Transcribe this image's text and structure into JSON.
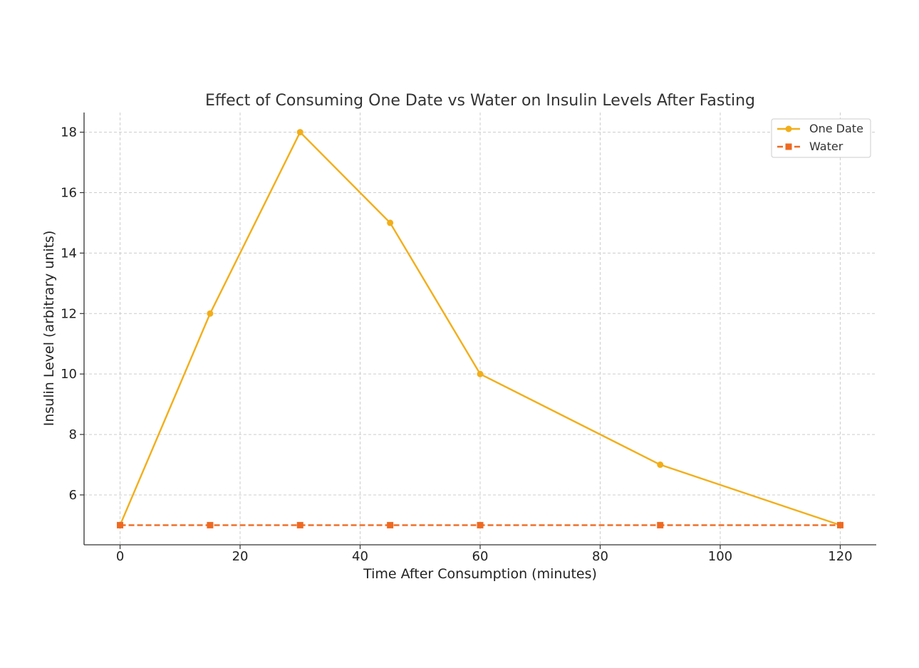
{
  "chart_data": {
    "type": "line",
    "title": "Effect of Consuming One Date vs Water on Insulin Levels After Fasting",
    "xlabel": "Time After Consumption (minutes)",
    "ylabel": "Insulin Level (arbitrary units)",
    "x": [
      0,
      15,
      30,
      45,
      60,
      90,
      120
    ],
    "xlim": [
      -6,
      126
    ],
    "ylim": [
      4.35,
      18.65
    ],
    "xticks": [
      0,
      20,
      40,
      60,
      80,
      100,
      120
    ],
    "yticks": [
      6,
      8,
      10,
      12,
      14,
      16,
      18
    ],
    "grid": true,
    "legend_position": "top-right",
    "series": [
      {
        "name": "One Date",
        "values": [
          5,
          12,
          18,
          15,
          10,
          7,
          5
        ],
        "color": "#F2AE1A",
        "marker": "circle",
        "line_style": "solid"
      },
      {
        "name": "Water",
        "values": [
          5,
          5,
          5,
          5,
          5,
          5,
          5
        ],
        "color": "#EE6A22",
        "marker": "square",
        "line_style": "dashed"
      }
    ]
  }
}
